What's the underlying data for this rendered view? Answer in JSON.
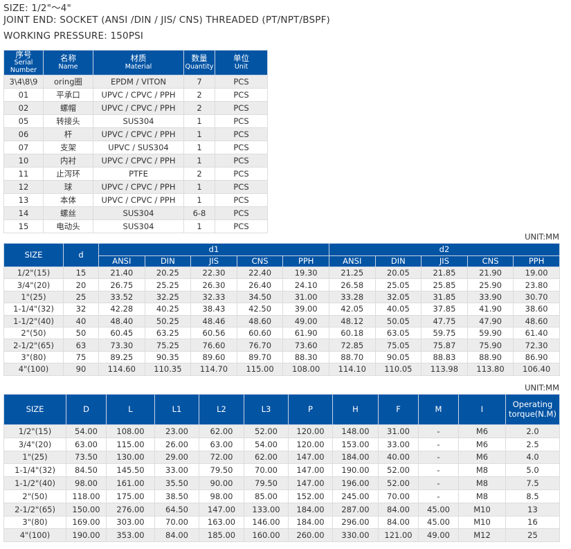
{
  "header": {
    "size": "SIZE:  1/2\"～4\"",
    "joint_end": "JOINT END: SOCKET (ANSI /DIN / JIS/ CNS)    THREADED (PT/NPT/BSPF)",
    "pressure": "WORKING  PRESSURE: 150PSI"
  },
  "parts_table": {
    "headers": [
      [
        "序号",
        "Serial Number"
      ],
      [
        "名称",
        "Name"
      ],
      [
        "材质",
        "Material"
      ],
      [
        "数量",
        "Quantity"
      ],
      [
        "单位",
        "Unit"
      ]
    ],
    "rows": [
      [
        "3\\4\\8\\9",
        "oring圈",
        "EPDM / VITON",
        "7",
        "PCS"
      ],
      [
        "01",
        "平承口",
        "UPVC / CPVC / PPH",
        "2",
        "PCS"
      ],
      [
        "02",
        "螺帽",
        "UPVC / CPVC / PPH",
        "2",
        "PCS"
      ],
      [
        "05",
        "转接头",
        "SUS304",
        "1",
        "PCS"
      ],
      [
        "06",
        "杆",
        "UPVC / CPVC / PPH",
        "1",
        "PCS"
      ],
      [
        "07",
        "支架",
        "UPVC / SUS304",
        "1",
        "PCS"
      ],
      [
        "10",
        "内衬",
        "UPVC / CPVC / PPH",
        "1",
        "PCS"
      ],
      [
        "11",
        "止泻环",
        "PTFE",
        "2",
        "PCS"
      ],
      [
        "12",
        "球",
        "UPVC / CPVC / PPH",
        "1",
        "PCS"
      ],
      [
        "13",
        "本体",
        "UPVC / CPVC / PPH",
        "1",
        "PCS"
      ],
      [
        "14",
        "螺丝",
        "SUS304",
        "6-8",
        "PCS"
      ],
      [
        "15",
        "电动头",
        "SUS304",
        "1",
        "PCS"
      ]
    ]
  },
  "socket_table": {
    "unit": "UNIT:MM",
    "size_label": "SIZE",
    "d_label": "d",
    "d1_label": "d1",
    "d2_label": "d2",
    "sub_headers": [
      "ANSI",
      "DIN",
      "JIS",
      "CNS",
      "PPH",
      "ANSI",
      "DIN",
      "JIS",
      "CNS",
      "PPH"
    ],
    "rows": [
      [
        "1/2\"(15)",
        "15",
        "21.40",
        "20.25",
        "22.30",
        "22.40",
        "19.30",
        "21.25",
        "20.05",
        "21.85",
        "21.90",
        "19.00"
      ],
      [
        "3/4\"(20)",
        "20",
        "26.75",
        "25.25",
        "26.30",
        "26.40",
        "24.10",
        "26.58",
        "25.05",
        "25.85",
        "25.90",
        "23.80"
      ],
      [
        "1\"(25)",
        "25",
        "33.52",
        "32.25",
        "32.33",
        "34.50",
        "31.00",
        "33.28",
        "32.05",
        "31.85",
        "33.90",
        "30.70"
      ],
      [
        "1-1/4\"(32)",
        "32",
        "42.28",
        "40.25",
        "38.43",
        "42.50",
        "39.00",
        "42.05",
        "40.05",
        "37.85",
        "41.90",
        "38.60"
      ],
      [
        "1-1/2\"(40)",
        "40",
        "48.40",
        "50.25",
        "48.46",
        "48.60",
        "49.00",
        "48.12",
        "50.05",
        "47.75",
        "47.90",
        "48.60"
      ],
      [
        "2\"(50)",
        "50",
        "60.45",
        "63.25",
        "60.56",
        "60.60",
        "61.90",
        "60.18",
        "63.05",
        "59.75",
        "59.90",
        "61.40"
      ],
      [
        "2-1/2\"(65)",
        "63",
        "73.30",
        "75.25",
        "76.60",
        "76.70",
        "73.60",
        "72.85",
        "75.05",
        "75.87",
        "75.90",
        "72.30"
      ],
      [
        "3\"(80)",
        "75",
        "89.25",
        "90.35",
        "89.60",
        "89.70",
        "88.30",
        "88.70",
        "90.05",
        "88.83",
        "88.90",
        "86.90"
      ],
      [
        "4\"(100)",
        "90",
        "114.60",
        "110.35",
        "114.70",
        "115.00",
        "108.00",
        "114.10",
        "110.05",
        "113.98",
        "113.80",
        "106.40"
      ]
    ]
  },
  "dimension_table": {
    "unit": "UNIT:MM",
    "headers": [
      "SIZE",
      "D",
      "L",
      "L1",
      "L2",
      "L3",
      "P",
      "H",
      "F",
      "M",
      "I",
      "Operating torque(N.M)"
    ],
    "rows": [
      [
        "1/2\"(15)",
        "54.00",
        "108.00",
        "23.00",
        "62.00",
        "52.00",
        "120.00",
        "148.00",
        "31.00",
        "-",
        "M6",
        "2.0"
      ],
      [
        "3/4\"(20)",
        "63.00",
        "115.00",
        "26.00",
        "63.00",
        "54.00",
        "120.00",
        "153.00",
        "33.00",
        "-",
        "M6",
        "2.5"
      ],
      [
        "1\"(25)",
        "73.50",
        "130.00",
        "29.00",
        "72.00",
        "62.00",
        "147.00",
        "184.00",
        "40.00",
        "-",
        "M6",
        "4.0"
      ],
      [
        "1-1/4\"(32)",
        "84.50",
        "145.50",
        "33.00",
        "79.50",
        "70.00",
        "147.00",
        "190.00",
        "52.00",
        "-",
        "M8",
        "5.0"
      ],
      [
        "1-1/2\"(40)",
        "98.00",
        "161.00",
        "35.50",
        "90.00",
        "79.50",
        "147.00",
        "196.00",
        "52.00",
        "-",
        "M8",
        "7.5"
      ],
      [
        "2\"(50)",
        "118.00",
        "175.00",
        "38.50",
        "98.00",
        "85.00",
        "152.00",
        "245.00",
        "70.00",
        "-",
        "M8",
        "8.5"
      ],
      [
        "2-1/2\"(65)",
        "150.00",
        "276.00",
        "64.50",
        "147.00",
        "133.00",
        "184.00",
        "287.00",
        "84.00",
        "45.00",
        "M10",
        "13"
      ],
      [
        "3\"(80)",
        "169.00",
        "303.00",
        "70.00",
        "163.00",
        "146.00",
        "184.00",
        "296.00",
        "84.00",
        "45.00",
        "M10",
        "16"
      ],
      [
        "4\"(100)",
        "190.00",
        "353.00",
        "84.00",
        "185.00",
        "160.00",
        "260.00",
        "330.00",
        "121.00",
        "49.00",
        "M12",
        "25"
      ]
    ]
  }
}
